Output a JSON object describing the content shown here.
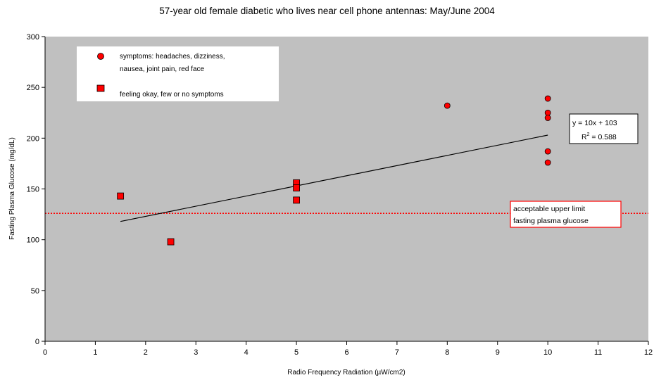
{
  "chart_data": {
    "type": "scatter",
    "title": "57-year old female diabetic who lives near cell phone antennas:  May/June 2004",
    "xlabel": "Radio Frequency Radiation (µW/cm2)",
    "ylabel": "Fasting Plasma Glucose (mg/dL)",
    "xlim": [
      0,
      12
    ],
    "ylim": [
      0,
      300
    ],
    "x_ticks": [
      0,
      1,
      2,
      3,
      4,
      5,
      6,
      7,
      8,
      9,
      10,
      11,
      12
    ],
    "y_ticks": [
      0,
      50,
      100,
      150,
      200,
      250,
      300
    ],
    "grid": false,
    "legend_position": "top-left",
    "plot_background": "#c0c0c0",
    "marker_color": "#ff0000",
    "series": [
      {
        "name": "symptoms: headaches, dizziness, nausea, joint pain, red face",
        "marker": "circle",
        "points": [
          [
            8,
            232
          ],
          [
            10,
            239
          ],
          [
            10,
            225
          ],
          [
            10,
            220
          ],
          [
            10,
            187
          ],
          [
            10,
            176
          ]
        ]
      },
      {
        "name": "feeling okay, few or no symptoms",
        "marker": "square",
        "points": [
          [
            1.5,
            143
          ],
          [
            2.5,
            98
          ],
          [
            5,
            156
          ],
          [
            5,
            151
          ],
          [
            5,
            139
          ]
        ]
      }
    ],
    "legend_lines": [
      [
        "symptoms: headaches, dizziness,",
        "nausea, joint pain, red face"
      ],
      [
        "feeling okay, few or no symptoms"
      ]
    ],
    "trendline": {
      "equation": "y = 10x + 103",
      "r2_label": "R",
      "r2_superscript": "2",
      "r2_value": " = 0.588",
      "slope": 10,
      "intercept": 103,
      "x_range": [
        1.5,
        10
      ]
    },
    "reference_line": {
      "y": 126,
      "color": "#ff0000",
      "label_lines": [
        "acceptable upper limit",
        "fasting plasma glucose"
      ]
    }
  }
}
